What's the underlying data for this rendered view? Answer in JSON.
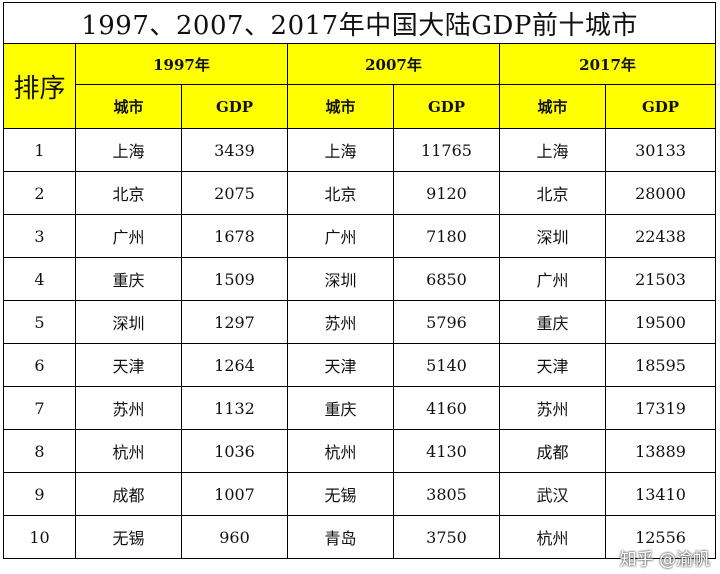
{
  "title": "1997、2007、2017年中国大陆GDP前十城市",
  "rank_header": "排序",
  "years": [
    "1997年",
    "2007年",
    "2017年"
  ],
  "sub_headers": {
    "city": "城市",
    "gdp": "GDP"
  },
  "rows": [
    {
      "rank": "1",
      "y1997": {
        "city": "上海",
        "gdp": "3439"
      },
      "y2007": {
        "city": "上海",
        "gdp": "11765"
      },
      "y2017": {
        "city": "上海",
        "gdp": "30133"
      }
    },
    {
      "rank": "2",
      "y1997": {
        "city": "北京",
        "gdp": "2075"
      },
      "y2007": {
        "city": "北京",
        "gdp": "9120"
      },
      "y2017": {
        "city": "北京",
        "gdp": "28000"
      }
    },
    {
      "rank": "3",
      "y1997": {
        "city": "广州",
        "gdp": "1678"
      },
      "y2007": {
        "city": "广州",
        "gdp": "7180"
      },
      "y2017": {
        "city": "深圳",
        "gdp": "22438"
      }
    },
    {
      "rank": "4",
      "y1997": {
        "city": "重庆",
        "gdp": "1509"
      },
      "y2007": {
        "city": "深圳",
        "gdp": "6850"
      },
      "y2017": {
        "city": "广州",
        "gdp": "21503"
      }
    },
    {
      "rank": "5",
      "y1997": {
        "city": "深圳",
        "gdp": "1297"
      },
      "y2007": {
        "city": "苏州",
        "gdp": "5796"
      },
      "y2017": {
        "city": "重庆",
        "gdp": "19500"
      }
    },
    {
      "rank": "6",
      "y1997": {
        "city": "天津",
        "gdp": "1264"
      },
      "y2007": {
        "city": "天津",
        "gdp": "5140"
      },
      "y2017": {
        "city": "天津",
        "gdp": "18595"
      }
    },
    {
      "rank": "7",
      "y1997": {
        "city": "苏州",
        "gdp": "1132"
      },
      "y2007": {
        "city": "重庆",
        "gdp": "4160"
      },
      "y2017": {
        "city": "苏州",
        "gdp": "17319"
      }
    },
    {
      "rank": "8",
      "y1997": {
        "city": "杭州",
        "gdp": "1036"
      },
      "y2007": {
        "city": "杭州",
        "gdp": "4130"
      },
      "y2017": {
        "city": "成都",
        "gdp": "13889"
      }
    },
    {
      "rank": "9",
      "y1997": {
        "city": "成都",
        "gdp": "1007"
      },
      "y2007": {
        "city": "无锡",
        "gdp": "3805"
      },
      "y2017": {
        "city": "武汉",
        "gdp": "13410"
      }
    },
    {
      "rank": "10",
      "y1997": {
        "city": "无锡",
        "gdp": "960"
      },
      "y2007": {
        "city": "青岛",
        "gdp": "3750"
      },
      "y2017": {
        "city": "杭州",
        "gdp": "12556"
      }
    }
  ],
  "watermark": "知乎 @渝帆"
}
